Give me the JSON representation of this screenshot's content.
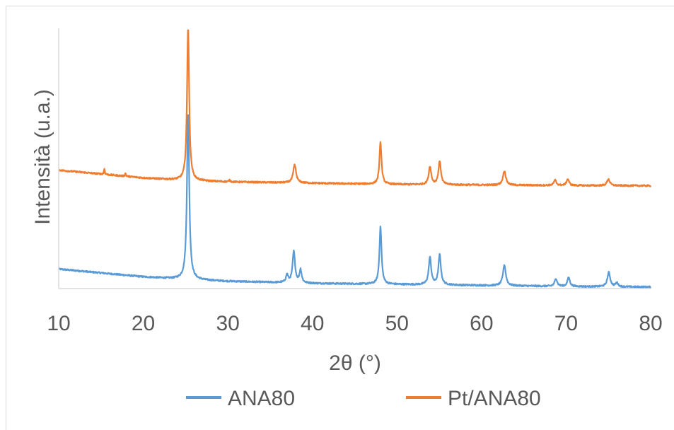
{
  "chart_data": {
    "type": "line",
    "xlabel": "2θ (°)",
    "ylabel": "Intensità (u.a.)",
    "xlim": [
      10,
      80
    ],
    "x_ticks": [
      "10",
      "20",
      "30",
      "40",
      "50",
      "60",
      "70",
      "80"
    ],
    "y_ticks_visible": false,
    "grid": false,
    "legend_position": "bottom",
    "series": [
      {
        "name": "ANA80",
        "color": "#5b9bd5",
        "baseline": [
          [
            10,
            0.075
          ],
          [
            15,
            0.06
          ],
          [
            20,
            0.045
          ],
          [
            25,
            0.035
          ],
          [
            30,
            0.028
          ],
          [
            40,
            0.02
          ],
          [
            50,
            0.016
          ],
          [
            60,
            0.012
          ],
          [
            70,
            0.008
          ],
          [
            80,
            0.006
          ]
        ],
        "peaks": [
          {
            "x": 25.3,
            "height": 0.64,
            "width": 0.32
          },
          {
            "x": 37.0,
            "height": 0.03,
            "width": 0.3
          },
          {
            "x": 37.8,
            "height": 0.12,
            "width": 0.35
          },
          {
            "x": 38.6,
            "height": 0.05,
            "width": 0.3
          },
          {
            "x": 48.05,
            "height": 0.22,
            "width": 0.3
          },
          {
            "x": 53.9,
            "height": 0.105,
            "width": 0.35
          },
          {
            "x": 55.05,
            "height": 0.115,
            "width": 0.35
          },
          {
            "x": 62.7,
            "height": 0.08,
            "width": 0.4
          },
          {
            "x": 68.8,
            "height": 0.03,
            "width": 0.35
          },
          {
            "x": 70.3,
            "height": 0.035,
            "width": 0.35
          },
          {
            "x": 75.05,
            "height": 0.055,
            "width": 0.4
          },
          {
            "x": 76.0,
            "height": 0.015,
            "width": 0.35
          }
        ]
      },
      {
        "name": "Pt/ANA80",
        "color": "#ed7d31",
        "baseline": [
          [
            10,
            0.455
          ],
          [
            15,
            0.44
          ],
          [
            20,
            0.425
          ],
          [
            25,
            0.415
          ],
          [
            30,
            0.41
          ],
          [
            40,
            0.405
          ],
          [
            50,
            0.4
          ],
          [
            60,
            0.398
          ],
          [
            70,
            0.396
          ],
          [
            80,
            0.395
          ]
        ],
        "peaks": [
          {
            "x": 15.4,
            "height": 0.022,
            "width": 0.12
          },
          {
            "x": 17.9,
            "height": 0.012,
            "width": 0.12
          },
          {
            "x": 25.3,
            "height": 0.59,
            "width": 0.3
          },
          {
            "x": 30.2,
            "height": 0.006,
            "width": 0.2
          },
          {
            "x": 37.9,
            "height": 0.07,
            "width": 0.4
          },
          {
            "x": 48.05,
            "height": 0.16,
            "width": 0.3
          },
          {
            "x": 53.9,
            "height": 0.07,
            "width": 0.35
          },
          {
            "x": 55.05,
            "height": 0.09,
            "width": 0.35
          },
          {
            "x": 62.7,
            "height": 0.055,
            "width": 0.4
          },
          {
            "x": 68.7,
            "height": 0.02,
            "width": 0.35
          },
          {
            "x": 70.2,
            "height": 0.025,
            "width": 0.35
          },
          {
            "x": 75.0,
            "height": 0.025,
            "width": 0.4
          }
        ]
      }
    ]
  }
}
